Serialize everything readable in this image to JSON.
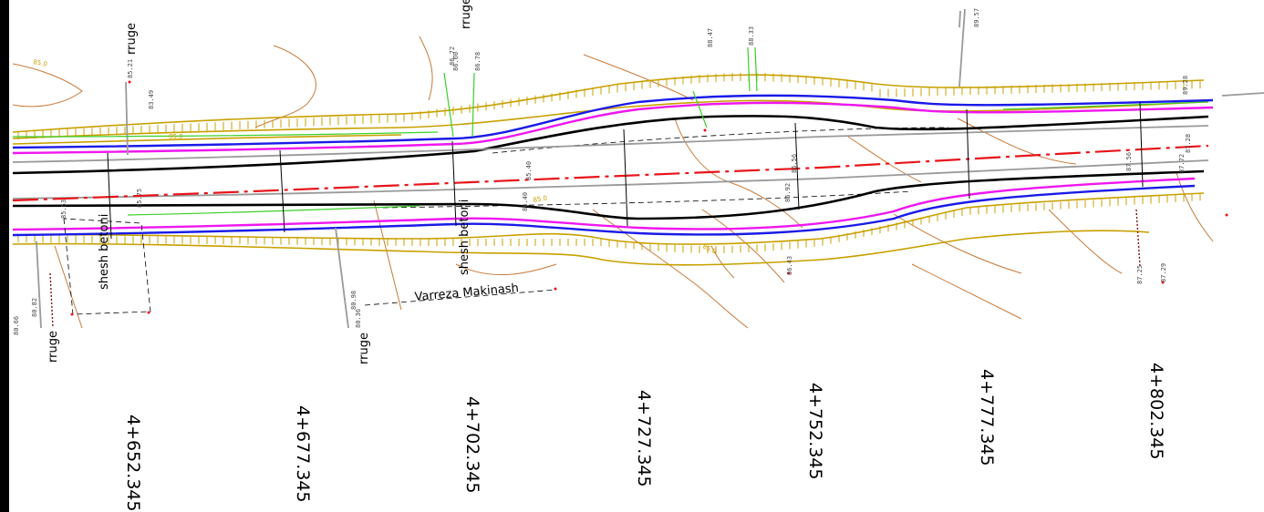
{
  "chainages": [
    "4+652.345",
    "4+677.345",
    "4+702.345",
    "4+727.345",
    "4+752.345",
    "4+777.345",
    "4+802.345"
  ],
  "labels": {
    "rruge": "rruge",
    "shesh_left": "shesh betoni",
    "shesh_mid": "shesh betoni",
    "varreza": "Varreza Makinash"
  },
  "contours": {
    "c85": "85.0"
  },
  "elevations": [
    "85.21",
    "86.60",
    "86.78",
    "88.47",
    "88.33",
    "89.57",
    "89.28",
    "87.72",
    "87.56",
    "87.28",
    "86.56",
    "86.43",
    "87.25",
    "87.29",
    "85.40",
    "85.53",
    "80.66",
    "80.82",
    "80.98",
    "80.36",
    "85.75",
    "83.49",
    "86.72",
    "86.92",
    "86.40"
  ],
  "colors": {
    "centerline": "#e8141b",
    "edge_magenta": "#ef16ef",
    "edge_blue": "#1a1ae8",
    "road_black": "#000000",
    "slope_gold": "#c8a000",
    "contour_brown": "#c77a3a",
    "gray": "#9a9a9a",
    "green": "#3ccf2a"
  }
}
